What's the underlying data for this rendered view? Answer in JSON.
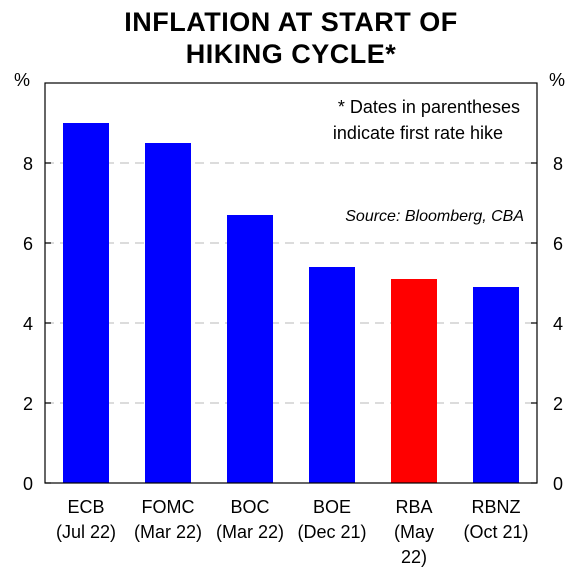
{
  "chart_data": {
    "type": "bar",
    "title_lines": [
      "INFLATION AT START OF",
      "HIKING CYCLE*"
    ],
    "unit_left": "%",
    "unit_right": "%",
    "categories": [
      [
        "ECB",
        "(Jul 22)"
      ],
      [
        "FOMC",
        "(Mar 22)"
      ],
      [
        "BOC",
        "(Mar 22)"
      ],
      [
        "BOE",
        "(Dec 21)"
      ],
      [
        "RBA",
        "(May",
        "22)"
      ],
      [
        "RBNZ",
        "(Oct 21)"
      ]
    ],
    "values": [
      9.0,
      8.5,
      6.7,
      5.4,
      5.1,
      4.9
    ],
    "bar_colors": [
      "#0000ff",
      "#0000ff",
      "#0000ff",
      "#0000ff",
      "#ff0000",
      "#0000ff"
    ],
    "ylim": [
      0,
      10
    ],
    "yticks": [
      0,
      2,
      4,
      6,
      8
    ],
    "grid": true,
    "note_lines": [
      "*  Dates in parentheses",
      "indicate first rate hike"
    ],
    "source": "Source: Bloomberg, CBA"
  }
}
